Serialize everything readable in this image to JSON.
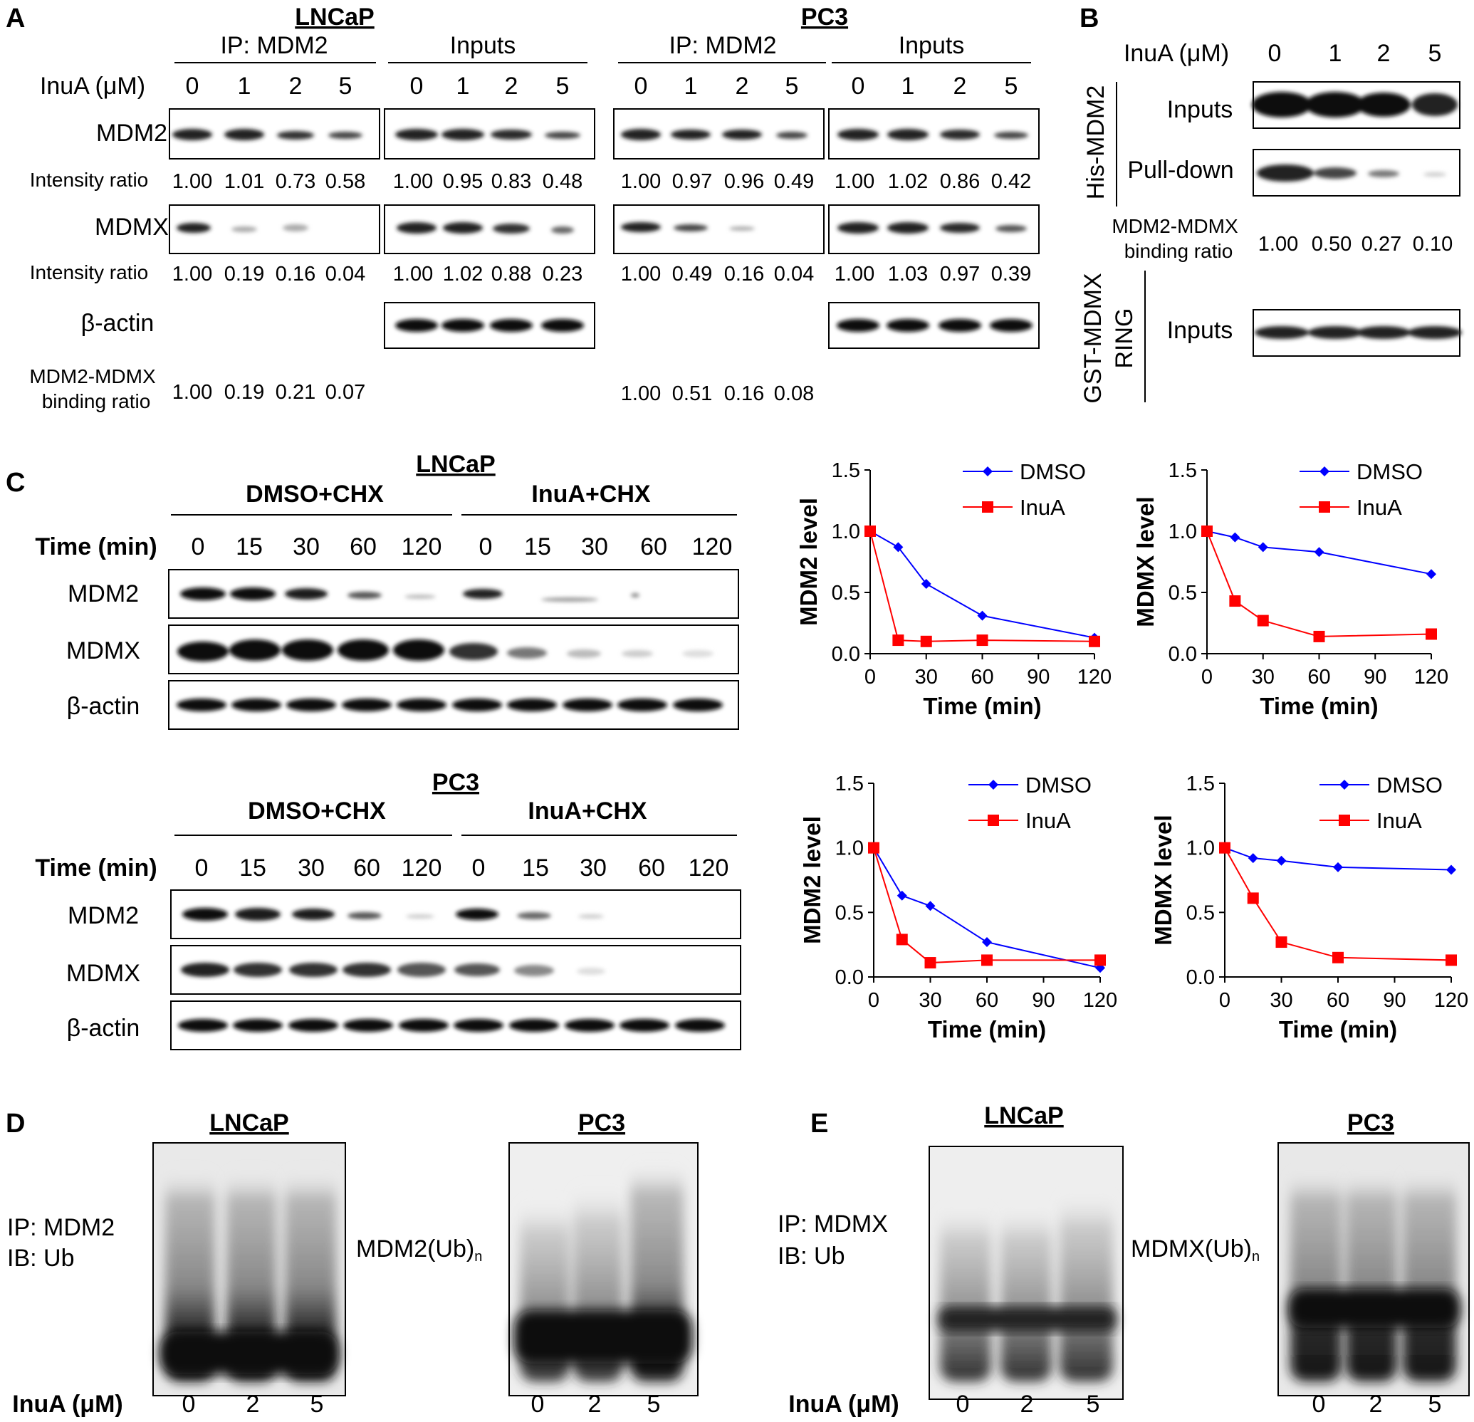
{
  "panels": {
    "A": {
      "letter": "A",
      "cells": [
        "LNCaP",
        "PC3"
      ],
      "groups": [
        "IP: MDM2",
        "Inputs"
      ],
      "treatment_label": "InuA (μM)",
      "doses": [
        "0",
        "1",
        "2",
        "5"
      ],
      "rows": [
        "MDM2",
        "MDMX",
        "β-actin"
      ],
      "intensity_label": "Intensity ratio",
      "binding_label_1": "MDM2-MDMX",
      "binding_label_2": "binding ratio",
      "ratios": {
        "lncap_ip_mdm2": [
          "1.00",
          "1.01",
          "0.73",
          "0.58"
        ],
        "lncap_in_mdm2": [
          "1.00",
          "0.95",
          "0.83",
          "0.48"
        ],
        "pc3_ip_mdm2": [
          "1.00",
          "0.97",
          "0.96",
          "0.49"
        ],
        "pc3_in_mdm2": [
          "1.00",
          "1.02",
          "0.86",
          "0.42"
        ],
        "lncap_ip_mdmx": [
          "1.00",
          "0.19",
          "0.16",
          "0.04"
        ],
        "lncap_in_mdmx": [
          "1.00",
          "1.02",
          "0.88",
          "0.23"
        ],
        "pc3_ip_mdmx": [
          "1.00",
          "0.49",
          "0.16",
          "0.04"
        ],
        "pc3_in_mdmx": [
          "1.00",
          "1.03",
          "0.97",
          "0.39"
        ],
        "lncap_binding": [
          "1.00",
          "0.19",
          "0.21",
          "0.07"
        ],
        "pc3_binding": [
          "1.00",
          "0.51",
          "0.16",
          "0.08"
        ]
      }
    },
    "B": {
      "letter": "B",
      "treatment_label": "InuA (μM)",
      "doses": [
        "0",
        "1",
        "2",
        "5"
      ],
      "protein1": "His-MDM2",
      "protein2_1": "GST-MDMX",
      "protein2_2": "RING",
      "inputs": "Inputs",
      "pulldown": "Pull-down",
      "binding_label_1": "MDM2-MDMX",
      "binding_label_2": "binding ratio",
      "binding": [
        "1.00",
        "0.50",
        "0.27",
        "0.10"
      ]
    },
    "C": {
      "letter": "C",
      "cells": [
        "LNCaP",
        "PC3"
      ],
      "conditions": [
        "DMSO+CHX",
        "InuA+CHX"
      ],
      "time_label": "Time (min)",
      "times": [
        "0",
        "15",
        "30",
        "60",
        "120"
      ],
      "rows": [
        "MDM2",
        "MDMX",
        "β-actin"
      ]
    },
    "D": {
      "letter": "D",
      "cells": [
        "LNCaP",
        "PC3"
      ],
      "ip": "IP: MDM2",
      "ib": "IB: Ub",
      "product": "MDM2(Ub)",
      "sub": "n",
      "treatment_label": "InuA (μM)",
      "doses": [
        "0",
        "2",
        "5"
      ]
    },
    "E": {
      "letter": "E",
      "cells": [
        "LNCaP",
        "PC3"
      ],
      "ip": "IP: MDMX",
      "ib": "IB: Ub",
      "product": "MDMX(Ub)",
      "sub": "n",
      "treatment_label": "InuA (μM)",
      "doses": [
        "0",
        "2",
        "5"
      ]
    }
  },
  "series_colors": {
    "DMSO": "#0000ff",
    "InuA": "#ff0000"
  },
  "chart_data": [
    {
      "type": "line",
      "title": "",
      "xlabel": "Time (min)",
      "ylabel": "MDM2 level",
      "x": [
        0,
        15,
        30,
        60,
        120
      ],
      "xticks": [
        "0",
        "30",
        "60",
        "90",
        "120"
      ],
      "yticks": [
        "0.0",
        "0.5",
        "1.0",
        "1.5"
      ],
      "xlim": [
        0,
        120
      ],
      "ylim": [
        0,
        1.5
      ],
      "legend": "top-right",
      "series": [
        {
          "name": "DMSO",
          "values": [
            1.0,
            0.87,
            0.57,
            0.31,
            0.13
          ]
        },
        {
          "name": "InuA",
          "values": [
            1.0,
            0.11,
            0.1,
            0.11,
            0.1
          ]
        }
      ]
    },
    {
      "type": "line",
      "title": "",
      "xlabel": "Time (min)",
      "ylabel": "MDMX level",
      "x": [
        0,
        15,
        30,
        60,
        120
      ],
      "xticks": [
        "0",
        "30",
        "60",
        "90",
        "120"
      ],
      "yticks": [
        "0.0",
        "0.5",
        "1.0",
        "1.5"
      ],
      "xlim": [
        0,
        120
      ],
      "ylim": [
        0,
        1.5
      ],
      "legend": "top-right",
      "series": [
        {
          "name": "DMSO",
          "values": [
            1.0,
            0.95,
            0.87,
            0.83,
            0.65
          ]
        },
        {
          "name": "InuA",
          "values": [
            1.0,
            0.43,
            0.27,
            0.14,
            0.16
          ]
        }
      ]
    },
    {
      "type": "line",
      "title": "",
      "xlabel": "Time (min)",
      "ylabel": "MDM2 level",
      "x": [
        0,
        15,
        30,
        60,
        120
      ],
      "xticks": [
        "0",
        "30",
        "60",
        "90",
        "120"
      ],
      "yticks": [
        "0.0",
        "0.5",
        "1.0",
        "1.5"
      ],
      "xlim": [
        0,
        120
      ],
      "ylim": [
        0,
        1.5
      ],
      "legend": "top-right",
      "series": [
        {
          "name": "DMSO",
          "values": [
            1.0,
            0.63,
            0.55,
            0.27,
            0.07
          ]
        },
        {
          "name": "InuA",
          "values": [
            1.0,
            0.29,
            0.11,
            0.13,
            0.13
          ]
        }
      ]
    },
    {
      "type": "line",
      "title": "",
      "xlabel": "Time (min)",
      "ylabel": "MDMX level",
      "x": [
        0,
        15,
        30,
        60,
        120
      ],
      "xticks": [
        "0",
        "30",
        "60",
        "90",
        "120"
      ],
      "yticks": [
        "0.0",
        "0.5",
        "1.0",
        "1.5"
      ],
      "xlim": [
        0,
        120
      ],
      "ylim": [
        0,
        1.5
      ],
      "legend": "top-right",
      "series": [
        {
          "name": "DMSO",
          "values": [
            1.0,
            0.92,
            0.9,
            0.85,
            0.83
          ]
        },
        {
          "name": "InuA",
          "values": [
            1.0,
            0.61,
            0.27,
            0.15,
            0.13
          ]
        }
      ]
    }
  ]
}
